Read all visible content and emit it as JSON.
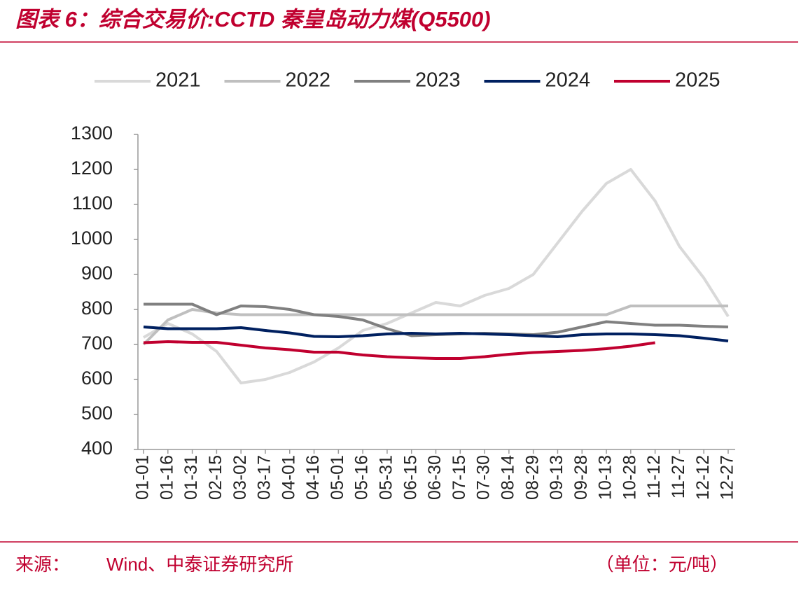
{
  "title": "图表 6：综合交易价:CCTD 秦皇岛动力煤(Q5500)",
  "source_label": "来源：",
  "source": "Wind、中泰证券研究所",
  "unit": "（单位：元/吨）",
  "chart_data": {
    "type": "line",
    "categories": [
      "01-01",
      "01-16",
      "01-31",
      "02-15",
      "03-02",
      "03-17",
      "04-01",
      "04-16",
      "05-01",
      "05-16",
      "05-31",
      "06-15",
      "06-30",
      "07-15",
      "07-30",
      "08-14",
      "08-29",
      "09-13",
      "09-28",
      "10-13",
      "10-28",
      "11-12",
      "11-27",
      "12-12",
      "12-27"
    ],
    "series": [
      {
        "name": "2021",
        "color": "#d9d9d9",
        "values": [
          720,
          760,
          730,
          680,
          590,
          600,
          620,
          650,
          690,
          740,
          760,
          790,
          820,
          810,
          840,
          860,
          900,
          990,
          1080,
          1160,
          1200,
          1110,
          980,
          890,
          780
        ]
      },
      {
        "name": "2022",
        "color": "#bfbfbf",
        "values": [
          700,
          770,
          800,
          790,
          785,
          785,
          785,
          785,
          785,
          785,
          785,
          785,
          785,
          785,
          785,
          785,
          785,
          785,
          785,
          785,
          810,
          810,
          810,
          810,
          810
        ]
      },
      {
        "name": "2023",
        "color": "#808080",
        "values": [
          815,
          815,
          815,
          785,
          810,
          808,
          800,
          785,
          780,
          770,
          745,
          725,
          728,
          730,
          732,
          730,
          728,
          735,
          750,
          765,
          760,
          755,
          755,
          752,
          750
        ]
      },
      {
        "name": "2024",
        "color": "#002060",
        "values": [
          750,
          745,
          745,
          745,
          748,
          740,
          733,
          723,
          722,
          725,
          730,
          732,
          730,
          732,
          730,
          728,
          725,
          722,
          728,
          730,
          730,
          728,
          725,
          718,
          710
        ]
      },
      {
        "name": "2025",
        "color": "#c0002f",
        "values": [
          705,
          708,
          706,
          706,
          698,
          690,
          685,
          678,
          678,
          670,
          665,
          662,
          660,
          660,
          665,
          672,
          677,
          680,
          683,
          688,
          695,
          705,
          null,
          null,
          null
        ]
      }
    ],
    "ylim": [
      400,
      1300
    ],
    "yticks": [
      400,
      500,
      600,
      700,
      800,
      900,
      1000,
      1100,
      1200,
      1300
    ],
    "legend": "top"
  }
}
